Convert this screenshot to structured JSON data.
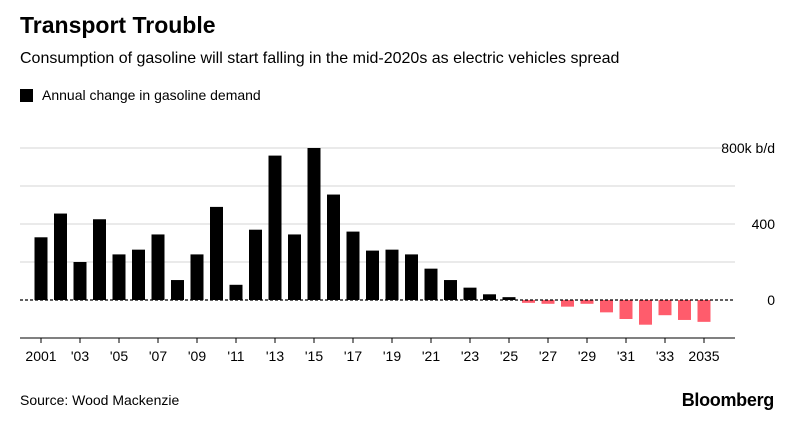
{
  "header": {
    "title": "Transport Trouble",
    "subtitle": "Consumption of gasoline will start falling in the mid-2020s as electric vehicles spread"
  },
  "legend": {
    "label": "Annual change in gasoline demand",
    "color": "#000000"
  },
  "footer": {
    "source": "Source: Wood Mackenzie",
    "brand": "Bloomberg"
  },
  "chart_data": {
    "type": "bar",
    "title": "Transport Trouble",
    "subtitle": "Consumption of gasoline will start falling in the mid-2020s as electric vehicles spread",
    "x": [
      2001,
      2002,
      2003,
      2004,
      2005,
      2006,
      2007,
      2008,
      2009,
      2010,
      2011,
      2012,
      2013,
      2014,
      2015,
      2016,
      2017,
      2018,
      2019,
      2020,
      2021,
      2022,
      2023,
      2024,
      2025,
      2026,
      2027,
      2028,
      2029,
      2030,
      2031,
      2032,
      2033,
      2034,
      2035
    ],
    "series": [
      {
        "name": "Annual change in gasoline demand",
        "values": [
          330,
          455,
          200,
          425,
          240,
          265,
          345,
          105,
          240,
          490,
          80,
          370,
          760,
          345,
          800,
          555,
          360,
          260,
          265,
          240,
          165,
          105,
          65,
          30,
          15,
          -15,
          -20,
          -35,
          -20,
          -65,
          -100,
          -130,
          -80,
          -105,
          -115
        ]
      }
    ],
    "colors": {
      "historical": "#000000",
      "forecast": "#ff5c6c"
    },
    "forecast_from": 2026,
    "x_tick_labels": [
      "2001",
      "'03",
      "'05",
      "'07",
      "'09",
      "'11",
      "'13",
      "'15",
      "'17",
      "'19",
      "'21",
      "'23",
      "'25",
      "'27",
      "'29",
      "'31",
      "'33",
      "2035"
    ],
    "y_ticks": [
      {
        "value": 800,
        "label": "800k b/d"
      },
      {
        "value": 400,
        "label": "400"
      },
      {
        "value": 0,
        "label": "0"
      }
    ],
    "ylim": [
      -150,
      850
    ],
    "grid": true,
    "zero_line": "dashed",
    "axis_position": "right"
  }
}
